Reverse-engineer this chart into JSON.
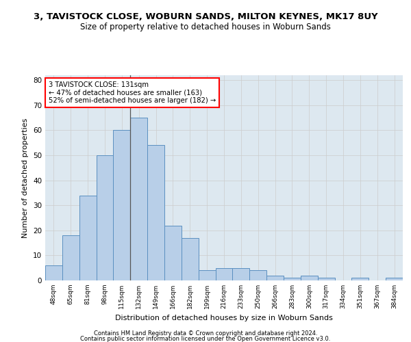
{
  "title": "3, TAVISTOCK CLOSE, WOBURN SANDS, MILTON KEYNES, MK17 8UY",
  "subtitle": "Size of property relative to detached houses in Woburn Sands",
  "xlabel": "Distribution of detached houses by size in Woburn Sands",
  "ylabel": "Number of detached properties",
  "categories": [
    "48sqm",
    "65sqm",
    "81sqm",
    "98sqm",
    "115sqm",
    "132sqm",
    "149sqm",
    "166sqm",
    "182sqm",
    "199sqm",
    "216sqm",
    "233sqm",
    "250sqm",
    "266sqm",
    "283sqm",
    "300sqm",
    "317sqm",
    "334sqm",
    "351sqm",
    "367sqm",
    "384sqm"
  ],
  "values": [
    6,
    18,
    34,
    50,
    60,
    65,
    54,
    22,
    17,
    4,
    5,
    5,
    4,
    2,
    1,
    2,
    1,
    0,
    1,
    0,
    1
  ],
  "bar_color": "#b8cfe8",
  "bar_edge_color": "#5a8fc0",
  "property_label": "3 TAVISTOCK CLOSE: 131sqm",
  "annotation_line1": "← 47% of detached houses are smaller (163)",
  "annotation_line2": "52% of semi-detached houses are larger (182) →",
  "vline_x": 4.5,
  "vline_color": "#555555",
  "annotation_box_color": "#ffffff",
  "annotation_box_edgecolor": "red",
  "ylim": [
    0,
    82
  ],
  "yticks": [
    0,
    10,
    20,
    30,
    40,
    50,
    60,
    70,
    80
  ],
  "grid_color": "#cccccc",
  "bg_color": "#dde8f0",
  "footer1": "Contains HM Land Registry data © Crown copyright and database right 2024.",
  "footer2": "Contains public sector information licensed under the Open Government Licence v3.0.",
  "title_fontsize": 9.5,
  "subtitle_fontsize": 8.5,
  "footer_fontsize": 6.0
}
